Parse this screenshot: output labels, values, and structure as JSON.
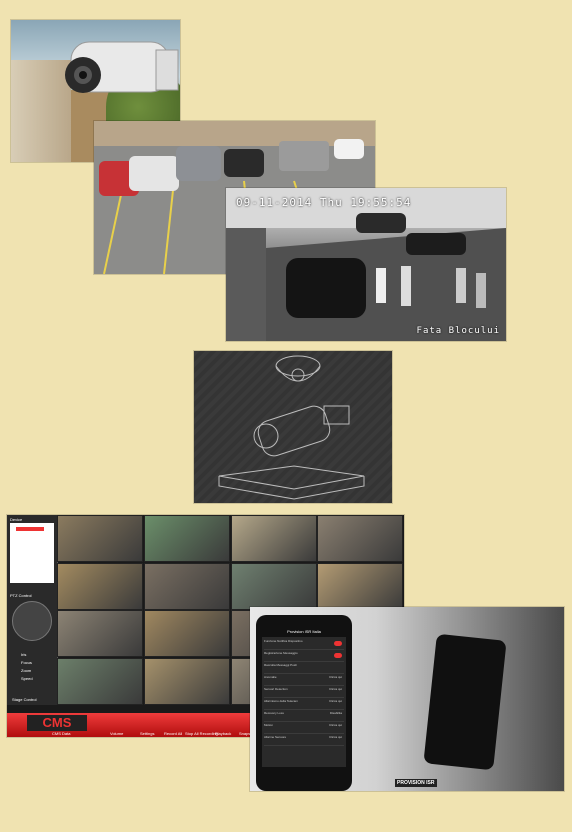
{
  "panels": {
    "parking_cam": {
      "osd_time": "",
      "brand": ""
    },
    "street_cam": {
      "osd_datetime": "09-11-2014 Thu 19:55:54",
      "caption": "Fata Blocului"
    },
    "cms_software": {
      "title": "CMS",
      "toolbar": [
        "CMS Data",
        "Volume",
        "Settings",
        "Record All",
        "Stop All Recording",
        "Playback",
        "Snapshot"
      ],
      "left_pane": {
        "header": "Device",
        "ptz_header": "PTZ Control",
        "ptz_labels": [
          "Iris",
          "Focus",
          "Zoom",
          "Speed"
        ],
        "bottom_button": "Stage Control"
      }
    },
    "mobile_app": {
      "app_title": "Provision ISR Italia",
      "settings": [
        {
          "label": "Funzione Notifica Dispositivo",
          "toggle": "on"
        },
        {
          "label": "Registrazione Messaggio",
          "toggle": "on"
        },
        {
          "label": "Raccolta Messaggi Push",
          "value": ""
        },
        {
          "label": "Anomalie",
          "value": "Clicca qui"
        },
        {
          "label": "Sensori Detection",
          "value": "Clicca qui"
        },
        {
          "label": "Allarmismo della Telecam",
          "value": "Clicca qui"
        },
        {
          "label": "Recovery Loss",
          "value": "Disabilita"
        },
        {
          "label": "Motion",
          "value": "Clicca qui"
        },
        {
          "label": "Allarme Sensore",
          "value": "Clicca qui"
        }
      ],
      "brand": "PROVISION ISR"
    }
  }
}
